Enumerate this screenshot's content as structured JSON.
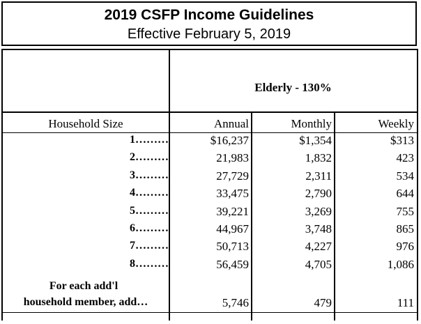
{
  "title": {
    "line1": "2019 CSFP Income Guidelines",
    "line2": "Effective February 5, 2019"
  },
  "table": {
    "group_header": "Elderly - 130%",
    "columns": [
      "Household Size",
      "Annual",
      "Monthly",
      "Weekly"
    ],
    "rows": [
      {
        "size": "1………",
        "annual": "$16,237",
        "monthly": "$1,354",
        "weekly": "$313"
      },
      {
        "size": "2………",
        "annual": "21,983",
        "monthly": "1,832",
        "weekly": "423"
      },
      {
        "size": "3………",
        "annual": "27,729",
        "monthly": "2,311",
        "weekly": "534"
      },
      {
        "size": "4………",
        "annual": "33,475",
        "monthly": "2,790",
        "weekly": "644"
      },
      {
        "size": "5………",
        "annual": "39,221",
        "monthly": "3,269",
        "weekly": "755"
      },
      {
        "size": "6………",
        "annual": "44,967",
        "monthly": "3,748",
        "weekly": "865"
      },
      {
        "size": "7………",
        "annual": "50,713",
        "monthly": "4,227",
        "weekly": "976"
      },
      {
        "size": "8………",
        "annual": "56,459",
        "monthly": "4,705",
        "weekly": "1,086"
      }
    ],
    "additional": {
      "label_line1": "For each add'l",
      "label_line2": "household member, add…",
      "annual": "5,746",
      "monthly": "479",
      "weekly": "111"
    }
  }
}
